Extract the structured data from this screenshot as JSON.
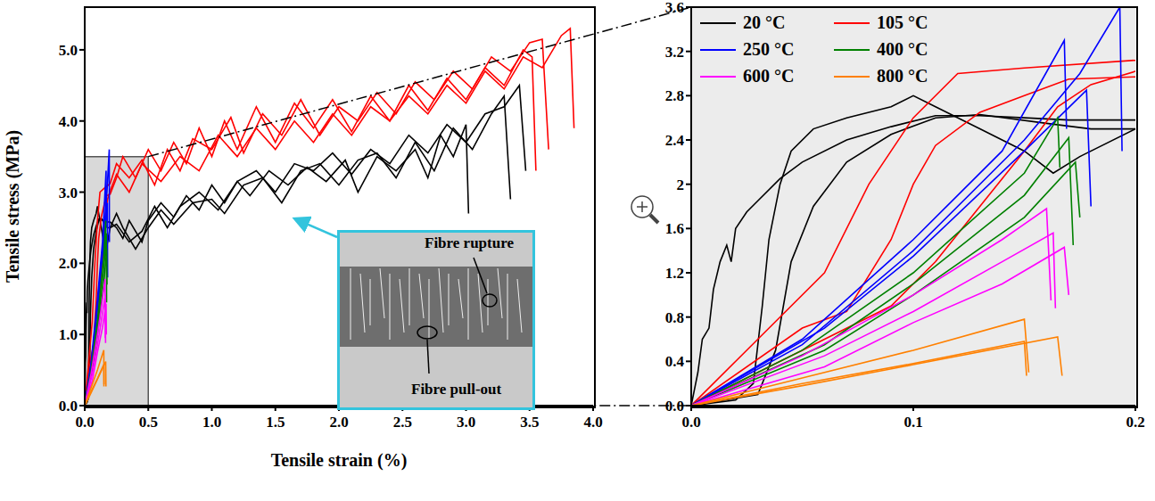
{
  "chart_data": {
    "type": "line",
    "series": [
      {
        "name": "20 °C",
        "color": "#000000",
        "curves": [
          {
            "x": [
              0,
              0.003,
              0.005,
              0.008,
              0.01,
              0.013,
              0.016,
              0.018,
              0.02,
              0.025,
              0.03,
              0.04,
              0.05,
              0.07,
              0.09,
              0.11,
              0.13,
              0.15,
              0.17,
              0.2,
              0.25,
              0.3,
              0.35,
              0.45,
              0.5,
              0.6,
              0.7,
              0.8,
              0.9,
              1.0,
              1.1,
              1.2,
              1.3,
              1.45,
              1.6,
              1.75,
              1.9,
              2.05,
              2.15,
              2.3,
              2.45,
              2.6,
              2.7,
              2.8,
              2.9,
              3.0,
              3.02
            ],
            "y": [
              0,
              0.3,
              0.6,
              0.7,
              1.05,
              1.3,
              1.45,
              1.3,
              1.6,
              1.75,
              1.85,
              2.05,
              2.2,
              2.4,
              2.52,
              2.62,
              2.62,
              2.6,
              2.58,
              2.58,
              2.5,
              2.35,
              2.6,
              2.3,
              2.6,
              2.85,
              2.65,
              2.95,
              2.75,
              3.1,
              2.85,
              3.15,
              2.95,
              3.3,
              3.1,
              3.35,
              3.15,
              3.45,
              3.0,
              3.5,
              3.3,
              3.6,
              3.2,
              3.8,
              3.5,
              3.95,
              2.7
            ]
          },
          {
            "x": [
              0,
              0.02,
              0.028,
              0.032,
              0.035,
              0.04,
              0.045,
              0.055,
              0.07,
              0.09,
              0.1,
              0.11,
              0.13,
              0.15,
              0.163,
              0.175,
              0.2,
              0.25,
              0.3,
              0.4,
              0.5,
              0.6,
              0.7,
              0.85,
              1.0,
              1.1,
              1.25,
              1.4,
              1.55,
              1.7,
              1.85,
              2.0,
              2.15,
              2.3,
              2.45,
              2.6,
              2.75,
              2.9,
              3.05,
              3.2,
              3.3,
              3.35
            ],
            "y": [
              0,
              0.05,
              0.2,
              0.9,
              1.5,
              2.0,
              2.3,
              2.5,
              2.6,
              2.7,
              2.8,
              2.7,
              2.5,
              2.3,
              2.1,
              2.25,
              2.5,
              2.7,
              2.5,
              2.2,
              2.5,
              2.75,
              2.55,
              2.85,
              2.9,
              2.7,
              3.1,
              3.2,
              2.85,
              3.3,
              3.4,
              3.1,
              3.45,
              3.55,
              3.2,
              3.7,
              3.3,
              3.9,
              3.6,
              4.1,
              4.35,
              2.9
            ]
          },
          {
            "x": [
              0,
              0.03,
              0.038,
              0.045,
              0.055,
              0.07,
              0.09,
              0.11,
              0.13,
              0.16,
              0.18,
              0.2,
              0.25,
              0.35,
              0.45,
              0.55,
              0.65,
              0.75,
              0.9,
              1.05,
              1.2,
              1.35,
              1.5,
              1.65,
              1.8,
              1.95,
              2.1,
              2.25,
              2.4,
              2.55,
              2.7,
              2.85,
              3.0,
              3.15,
              3.3,
              3.42,
              3.47
            ],
            "y": [
              0,
              0.1,
              0.5,
              1.3,
              1.8,
              2.2,
              2.45,
              2.6,
              2.63,
              2.55,
              2.5,
              2.5,
              2.55,
              2.3,
              2.45,
              2.8,
              2.5,
              2.8,
              3.0,
              2.75,
              3.15,
              3.3,
              3.0,
              3.4,
              3.3,
              3.55,
              3.25,
              3.6,
              3.4,
              3.8,
              3.55,
              3.95,
              3.7,
              4.1,
              4.2,
              4.5,
              3.3
            ]
          }
        ]
      },
      {
        "name": "105 °C",
        "color": "#ff0000",
        "curves": [
          {
            "x": [
              0,
              0.05,
              0.07,
              0.09,
              0.1,
              0.11,
              0.13,
              0.15,
              0.17,
              0.2,
              0.25,
              0.3,
              0.4,
              0.5,
              0.6,
              0.7,
              0.8,
              0.9,
              1.0,
              1.1,
              1.2,
              1.35,
              1.5,
              1.65,
              1.8,
              1.95,
              2.1,
              2.25,
              2.4,
              2.55,
              2.7,
              2.85,
              3.0,
              3.15,
              3.3,
              3.45,
              3.52,
              3.55
            ],
            "y": [
              0,
              0.7,
              0.85,
              1.5,
              2.0,
              2.35,
              2.65,
              2.8,
              2.95,
              2.97,
              3.2,
              3.5,
              3.2,
              3.6,
              3.3,
              3.7,
              3.4,
              3.9,
              3.5,
              4.0,
              3.6,
              4.2,
              3.7,
              4.25,
              3.9,
              4.3,
              3.85,
              4.35,
              4.0,
              4.5,
              4.15,
              4.6,
              4.3,
              4.75,
              4.5,
              5.0,
              4.9,
              3.3
            ]
          },
          {
            "x": [
              0,
              0.03,
              0.06,
              0.08,
              0.1,
              0.12,
              0.15,
              0.2,
              0.25,
              0.35,
              0.45,
              0.55,
              0.65,
              0.75,
              0.85,
              1.0,
              1.15,
              1.25,
              1.4,
              1.55,
              1.7,
              1.85,
              2.0,
              2.15,
              2.3,
              2.45,
              2.6,
              2.75,
              2.9,
              3.05,
              3.2,
              3.35,
              3.5,
              3.6,
              3.65
            ],
            "y": [
              0,
              0.6,
              1.2,
              2.0,
              2.6,
              3.0,
              3.05,
              3.12,
              3.4,
              3.2,
              3.45,
              3.1,
              3.6,
              3.3,
              3.75,
              3.6,
              4.05,
              3.55,
              4.1,
              3.8,
              4.3,
              3.8,
              4.2,
              4.0,
              4.4,
              4.1,
              4.55,
              4.3,
              4.7,
              4.45,
              4.9,
              4.7,
              5.1,
              5.15,
              3.6
            ]
          },
          {
            "x": [
              0,
              0.05,
              0.09,
              0.11,
              0.13,
              0.15,
              0.165,
              0.18,
              0.2,
              0.25,
              0.35,
              0.45,
              0.6,
              0.75,
              0.9,
              1.05,
              1.2,
              1.35,
              1.5,
              1.65,
              1.8,
              1.95,
              2.1,
              2.25,
              2.4,
              2.55,
              2.7,
              2.85,
              3.0,
              3.15,
              3.3,
              3.45,
              3.6,
              3.75,
              3.82,
              3.85
            ],
            "y": [
              0,
              0.5,
              0.9,
              1.3,
              1.8,
              2.3,
              2.7,
              2.9,
              3.02,
              3.25,
              3.0,
              3.4,
              3.15,
              3.5,
              3.3,
              3.8,
              3.5,
              3.9,
              3.6,
              4.0,
              3.7,
              4.1,
              3.8,
              4.2,
              4.0,
              4.35,
              4.1,
              4.5,
              4.25,
              4.7,
              4.45,
              4.9,
              4.75,
              5.2,
              5.3,
              3.9
            ]
          }
        ]
      },
      {
        "name": "250 °C",
        "color": "#0000ff",
        "curves": [
          {
            "x": [
              0,
              0.05,
              0.1,
              0.14,
              0.168,
              0.169
            ],
            "y": [
              0,
              0.6,
              1.5,
              2.3,
              3.3,
              2.5
            ]
          },
          {
            "x": [
              0,
              0.05,
              0.1,
              0.15,
              0.175,
              0.193,
              0.194
            ],
            "y": [
              0,
              0.55,
              1.4,
              2.4,
              3.0,
              3.6,
              2.3
            ]
          },
          {
            "x": [
              0,
              0.06,
              0.1,
              0.15,
              0.178,
              0.18
            ],
            "y": [
              0,
              0.7,
              1.35,
              2.3,
              2.85,
              1.8
            ]
          }
        ]
      },
      {
        "name": "400 °C",
        "color": "#008000",
        "curves": [
          {
            "x": [
              0,
              0.05,
              0.1,
              0.15,
              0.165,
              0.166
            ],
            "y": [
              0,
              0.5,
              1.2,
              2.1,
              2.6,
              2.15
            ]
          },
          {
            "x": [
              0,
              0.06,
              0.1,
              0.15,
              0.17,
              0.172
            ],
            "y": [
              0,
              0.55,
              1.1,
              1.9,
              2.42,
              1.45
            ]
          },
          {
            "x": [
              0,
              0.06,
              0.1,
              0.15,
              0.173,
              0.175
            ],
            "y": [
              0,
              0.5,
              1.0,
              1.7,
              2.2,
              1.7
            ]
          }
        ]
      },
      {
        "name": "600 °C",
        "color": "#ff00ff",
        "curves": [
          {
            "x": [
              0,
              0.05,
              0.1,
              0.14,
              0.16,
              0.162
            ],
            "y": [
              0,
              0.45,
              1.0,
              1.5,
              1.78,
              0.95
            ]
          },
          {
            "x": [
              0,
              0.06,
              0.1,
              0.14,
              0.163,
              0.164
            ],
            "y": [
              0,
              0.45,
              0.85,
              1.3,
              1.56,
              0.88
            ]
          },
          {
            "x": [
              0,
              0.06,
              0.1,
              0.14,
              0.168,
              0.17
            ],
            "y": [
              0,
              0.35,
              0.75,
              1.1,
              1.43,
              1.0
            ]
          }
        ]
      },
      {
        "name": "800 °C",
        "color": "#ff8000",
        "curves": [
          {
            "x": [
              0,
              0.05,
              0.1,
              0.15,
              0.152
            ],
            "y": [
              0,
              0.25,
              0.5,
              0.78,
              0.3
            ]
          },
          {
            "x": [
              0,
              0.05,
              0.1,
              0.15,
              0.151
            ],
            "y": [
              0,
              0.2,
              0.38,
              0.58,
              0.27
            ]
          },
          {
            "x": [
              0,
              0.05,
              0.1,
              0.165,
              0.167
            ],
            "y": [
              0,
              0.18,
              0.37,
              0.62,
              0.27
            ]
          }
        ]
      }
    ],
    "panels": [
      {
        "xlabel": "Tensile strain (%)",
        "ylabel": "Tensile stress (MPa)",
        "xlim": [
          0,
          4
        ],
        "ylim": [
          0,
          5.6
        ],
        "xticks": [
          {
            "value": 0,
            "label": "0.0"
          },
          0.5,
          {
            "value": 1,
            "label": "1.0"
          },
          1.5,
          {
            "value": 2,
            "label": "2.0"
          },
          2.5,
          {
            "value": 3,
            "label": "3.0"
          },
          3.5,
          {
            "value": 4,
            "label": "4.0"
          }
        ],
        "yticks": [
          {
            "value": 0,
            "label": "0.0"
          },
          {
            "value": 1,
            "label": "1.0"
          },
          {
            "value": 2,
            "label": "2.0"
          },
          {
            "value": 3,
            "label": "3.0"
          },
          {
            "value": 4,
            "label": "4.0"
          },
          {
            "value": 5,
            "label": "5.0"
          }
        ],
        "zoom_box": {
          "xlim": [
            0,
            0.5
          ],
          "ylim": [
            0,
            3.5
          ]
        },
        "annotations": [
          "Fibre rupture",
          "Fibre pull-out"
        ]
      },
      {
        "xlim": [
          0,
          0.2
        ],
        "ylim": [
          0,
          3.6
        ],
        "xticks": [
          {
            "value": 0,
            "label": "0.0"
          },
          0.1,
          0.2
        ],
        "yticks": [
          {
            "value": 0,
            "label": "0.0"
          },
          0.4,
          0.8,
          1.2,
          1.6,
          2.0,
          2.4,
          2.8,
          3.2,
          3.6
        ],
        "yticks_note_free": true,
        "legend": "upper left"
      }
    ]
  }
}
